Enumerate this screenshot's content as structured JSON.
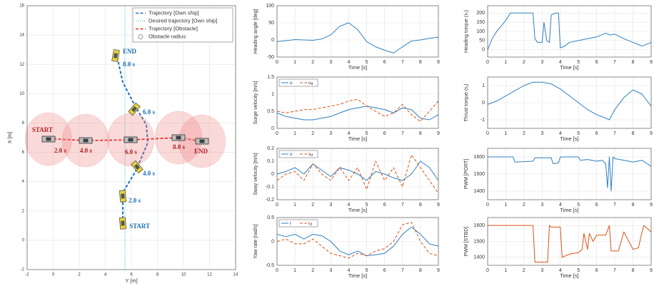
{
  "chart_data": [
    {
      "type": "line",
      "xlabel": "Y [m]",
      "ylabel": "X [m]",
      "xlim": [
        -2,
        14
      ],
      "ylim": [
        -2,
        16
      ],
      "xticks": [
        -2,
        0,
        2,
        4,
        6,
        8,
        10,
        12,
        14
      ],
      "yticks": [
        -2,
        0,
        2,
        4,
        6,
        8,
        10,
        12,
        14,
        16
      ],
      "grid": true,
      "legend": "northeast",
      "series": [
        {
          "name": "Trajectory [Own ship]",
          "color": "#1f6fb5",
          "dash": "dashed",
          "x": [
            5.34,
            5.34,
            6.33,
            7.26,
            7.15,
            6.33,
            5.34,
            4.85
          ],
          "values": [
            0.82,
            3.25,
            4.71,
            6.66,
            7.87,
            9.09,
            10.79,
            12.74
          ]
        },
        {
          "name": "Desired trajectory [Own ship]",
          "color": "#5bc8e6",
          "dash": "dotted",
          "x": [
            5.51,
            5.51
          ],
          "values": [
            -2,
            16
          ]
        },
        {
          "name": "Trajectory [Obstacle]",
          "color": "#e0302a",
          "dash": "dashed",
          "x": [
            -0.68,
            2.49,
            5.95,
            9.62,
            11.42
          ],
          "values": [
            6.95,
            6.8,
            6.85,
            7.0,
            6.75
          ]
        },
        {
          "name": "Obstacle radius",
          "color": "#f08080",
          "marker": "circle",
          "radius": 1.8,
          "x": [
            -0.36,
            2.49,
            5.95,
            9.62,
            11.42
          ],
          "values": [
            6.9,
            6.8,
            6.85,
            7.0,
            6.75
          ]
        }
      ],
      "annotations": [
        {
          "text": "START",
          "x": 5.84,
          "y": 0.92,
          "color": "#1f6fb5"
        },
        {
          "text": "2.0 s",
          "x": 5.78,
          "y": 2.67,
          "color": "#1f6fb5"
        },
        {
          "text": "4.0 s",
          "x": 6.88,
          "y": 4.52,
          "color": "#1f6fb5"
        },
        {
          "text": "6.0 s",
          "x": 6.88,
          "y": 8.7,
          "color": "#1f6fb5"
        },
        {
          "text": "8.0 s",
          "x": 5.34,
          "y": 11.96,
          "color": "#1f6fb5"
        },
        {
          "text": "END",
          "x": 5.34,
          "y": 12.83,
          "color": "#1f6fb5"
        },
        {
          "text": "START",
          "x": -1.62,
          "y": 7.48,
          "color": "#b22222"
        },
        {
          "text": "2.0 s",
          "x": 0.08,
          "y": 6.07,
          "color": "#b22222"
        },
        {
          "text": "4.0 s",
          "x": 2.05,
          "y": 6.07,
          "color": "#b22222"
        },
        {
          "text": "6.0 s",
          "x": 5.5,
          "y": 5.98,
          "color": "#b22222"
        },
        {
          "text": "8.0 s",
          "x": 9.18,
          "y": 6.32,
          "color": "#b22222"
        },
        {
          "text": "END",
          "x": 10.82,
          "y": 6.03,
          "color": "#b22222"
        }
      ]
    },
    {
      "type": "line",
      "xlabel": "Time [s]",
      "ylabel": "Heading angle [deg]",
      "x": [
        0,
        0.5,
        1,
        1.5,
        2,
        2.5,
        3,
        3.5,
        4,
        4.5,
        5,
        5.5,
        6,
        6.5,
        7,
        7.5,
        8,
        8.5,
        9
      ],
      "xlim": [
        0,
        9
      ],
      "xticks": [
        0,
        1,
        2,
        3,
        4,
        5,
        6,
        7,
        8,
        9
      ],
      "ylim": [
        -50,
        100
      ],
      "yticks": [
        -50,
        0,
        50,
        100
      ],
      "grid": true,
      "series": [
        {
          "color": "#2f7fc1",
          "values": [
            -5,
            -2,
            1,
            0,
            -1,
            3,
            15,
            40,
            50,
            30,
            -5,
            -20,
            -30,
            -38,
            -20,
            -3,
            0,
            5,
            8
          ]
        }
      ]
    },
    {
      "type": "line",
      "xlabel": "Time [s]",
      "ylabel": "Surge velocity [m/s]",
      "x": [
        0,
        0.5,
        1,
        1.5,
        2,
        2.5,
        3,
        3.5,
        4,
        4.5,
        5,
        5.5,
        6,
        6.5,
        7,
        7.5,
        8,
        8.5,
        9
      ],
      "xlim": [
        0,
        9
      ],
      "xticks": [
        0,
        1,
        2,
        3,
        4,
        5,
        6,
        7,
        8,
        9
      ],
      "ylim": [
        0,
        1.5
      ],
      "yticks": [
        0,
        0.5,
        1,
        1.5
      ],
      "grid": true,
      "legend": "northwest",
      "series": [
        {
          "name": "u",
          "color": "#2f7fc1",
          "dash": "solid",
          "values": [
            0.45,
            0.35,
            0.3,
            0.25,
            0.25,
            0.3,
            0.35,
            0.45,
            0.55,
            0.6,
            0.65,
            0.6,
            0.55,
            0.45,
            0.6,
            0.55,
            0.3,
            0.25,
            0.4
          ]
        },
        {
          "name": "u",
          "subscript": "d",
          "color": "#d95319",
          "dash": "dashed",
          "values": [
            0.5,
            0.45,
            0.5,
            0.55,
            0.55,
            0.6,
            0.65,
            0.7,
            0.8,
            0.85,
            0.65,
            0.5,
            0.35,
            0.45,
            0.7,
            0.4,
            0.2,
            0.5,
            0.8
          ]
        }
      ]
    },
    {
      "type": "line",
      "xlabel": "Time [s]",
      "ylabel": "Sway velocity [m/s]",
      "x": [
        0,
        0.5,
        1,
        1.5,
        2,
        2.5,
        3,
        3.5,
        4,
        4.5,
        5,
        5.5,
        6,
        6.5,
        7,
        7.5,
        8,
        8.5,
        9
      ],
      "xlim": [
        0,
        9
      ],
      "xticks": [
        0,
        1,
        2,
        3,
        4,
        5,
        6,
        7,
        8,
        9
      ],
      "ylim": [
        -0.2,
        0.2
      ],
      "yticks": [
        -0.2,
        -0.1,
        0,
        0.1,
        0.2
      ],
      "grid": true,
      "legend": "northwest",
      "series": [
        {
          "name": "v",
          "color": "#2f7fc1",
          "dash": "solid",
          "values": [
            0,
            0.02,
            0.05,
            0,
            0.08,
            0.03,
            -0.02,
            0.05,
            0.03,
            0,
            -0.05,
            0.02,
            0,
            -0.03,
            -0.05,
            0,
            0.1,
            0.05,
            -0.05
          ]
        },
        {
          "name": "v",
          "subscript": "d",
          "color": "#d95319",
          "dash": "dashed",
          "values": [
            -0.05,
            0,
            0.02,
            -0.05,
            0.08,
            0,
            -0.05,
            0.05,
            -0.05,
            0.05,
            -0.12,
            0.1,
            -0.05,
            0.05,
            -0.1,
            0.15,
            0.05,
            -0.05,
            -0.15
          ]
        }
      ]
    },
    {
      "type": "line",
      "xlabel": "Time [s]",
      "ylabel": "Yaw rate [rad/s]",
      "x": [
        0,
        0.5,
        1,
        1.5,
        2,
        2.5,
        3,
        3.5,
        4,
        4.5,
        5,
        5.5,
        6,
        6.5,
        7,
        7.5,
        8,
        8.5,
        9
      ],
      "xlim": [
        0,
        9
      ],
      "xticks": [
        0,
        1,
        2,
        3,
        4,
        5,
        6,
        7,
        8,
        9
      ],
      "ylim": [
        -0.5,
        0.5
      ],
      "yticks": [
        -0.5,
        0,
        0.5
      ],
      "grid": true,
      "legend": "northwest",
      "series": [
        {
          "name": "r",
          "color": "#2f7fc1",
          "dash": "solid",
          "values": [
            0.15,
            0.1,
            0.15,
            0.05,
            0.15,
            0.12,
            0,
            -0.2,
            -0.28,
            -0.2,
            -0.3,
            -0.28,
            -0.25,
            -0.1,
            0.15,
            0.3,
            0.15,
            -0.05,
            -0.1
          ]
        },
        {
          "name": "r",
          "subscript": "d",
          "color": "#d95319",
          "dash": "dashed",
          "values": [
            0,
            0.05,
            -0.05,
            -0.05,
            0.05,
            -0.1,
            -0.25,
            -0.3,
            -0.35,
            -0.25,
            -0.3,
            -0.2,
            -0.15,
            0,
            0.35,
            0.4,
            0,
            -0.25,
            -0.3
          ]
        }
      ]
    },
    {
      "type": "line",
      "xlabel": "Time [s]",
      "ylabel": "Heading torque (τₙ)",
      "x": [
        0,
        0.25,
        0.5,
        0.75,
        1,
        1.25,
        1.5,
        2,
        2.5,
        2.6,
        2.75,
        3,
        3.1,
        3.25,
        3.4,
        3.5,
        3.75,
        3.9,
        4,
        4.25,
        4.5,
        5,
        5.5,
        6,
        6.5,
        6.75,
        7,
        7.5,
        8,
        8.5,
        9
      ],
      "xlim": [
        0,
        9
      ],
      "xticks": [
        0,
        1,
        2,
        3,
        4,
        5,
        6,
        7,
        8,
        9
      ],
      "ylim": [
        -40,
        240
      ],
      "yticks": [
        0,
        50,
        100,
        150,
        200
      ],
      "grid": true,
      "series": [
        {
          "color": "#2f7fc1",
          "values": [
            0,
            60,
            100,
            130,
            160,
            200,
            200,
            200,
            200,
            60,
            40,
            40,
            150,
            50,
            40,
            190,
            200,
            200,
            10,
            20,
            40,
            50,
            60,
            70,
            90,
            80,
            85,
            60,
            40,
            20,
            40
          ]
        }
      ]
    },
    {
      "type": "line",
      "xlabel": "Time [s]",
      "ylabel": "Thrust torque (τₓ)",
      "x": [
        0,
        0.5,
        1,
        1.5,
        2,
        2.5,
        3,
        3.5,
        4,
        4.5,
        5,
        5.5,
        6,
        6.5,
        6.7,
        7,
        7.5,
        8,
        8.5,
        9
      ],
      "xlim": [
        0,
        9
      ],
      "xticks": [
        0,
        1,
        2,
        3,
        4,
        5,
        6,
        7,
        8,
        9
      ],
      "ylim": [
        -1.5,
        1.5
      ],
      "yticks": [
        -1,
        0,
        1
      ],
      "grid": true,
      "series": [
        {
          "color": "#2f7fc1",
          "values": [
            -0.1,
            0.1,
            0.4,
            0.7,
            1,
            1.2,
            1.2,
            1.1,
            0.8,
            0.4,
            0,
            -0.4,
            -0.7,
            -0.9,
            -1,
            -0.4,
            0.3,
            0.75,
            0.5,
            -0.2
          ]
        }
      ]
    },
    {
      "type": "line",
      "xlabel": "Time [s]",
      "ylabel": "PWM [PORT]",
      "x": [
        0,
        1,
        1.4,
        1.5,
        2.5,
        2.6,
        3.5,
        3.6,
        3.9,
        4,
        5,
        5.1,
        5.5,
        6,
        6.3,
        6.5,
        6.6,
        6.7,
        6.8,
        6.9,
        7,
        7.5,
        8,
        8.5,
        9
      ],
      "xlim": [
        0,
        9
      ],
      "xticks": [
        0,
        1,
        2,
        3,
        4,
        5,
        6,
        7,
        8,
        9
      ],
      "ylim": [
        1350,
        1650
      ],
      "yticks": [
        1400,
        1500,
        1600
      ],
      "grid": true,
      "series": [
        {
          "color": "#2f7fc1",
          "values": [
            1600,
            1600,
            1600,
            1570,
            1575,
            1595,
            1595,
            1560,
            1565,
            1600,
            1600,
            1580,
            1585,
            1575,
            1580,
            1560,
            1420,
            1600,
            1400,
            1600,
            1590,
            1580,
            1570,
            1580,
            1545
          ]
        }
      ]
    },
    {
      "type": "line",
      "xlabel": "Time [s]",
      "ylabel": "PWM [STBD]",
      "x": [
        0,
        2.5,
        2.6,
        3.3,
        3.4,
        3.5,
        4,
        4.1,
        4.5,
        5,
        5.2,
        5.3,
        5.5,
        5.6,
        5.8,
        6,
        6.5,
        6.7,
        6.8,
        7.2,
        7.5,
        8,
        8.3,
        8.5,
        8.6,
        9
      ],
      "xlim": [
        0,
        9
      ],
      "xticks": [
        0,
        1,
        2,
        3,
        4,
        5,
        6,
        7,
        8,
        9
      ],
      "ylim": [
        1350,
        1650
      ],
      "yticks": [
        1400,
        1500,
        1600
      ],
      "grid": true,
      "series": [
        {
          "color": "#d95319",
          "values": [
            1600,
            1600,
            1370,
            1370,
            1600,
            1590,
            1590,
            1400,
            1420,
            1430,
            1450,
            1550,
            1450,
            1550,
            1500,
            1540,
            1540,
            1600,
            1440,
            1440,
            1560,
            1450,
            1460,
            1560,
            1600,
            1560
          ]
        }
      ]
    }
  ]
}
